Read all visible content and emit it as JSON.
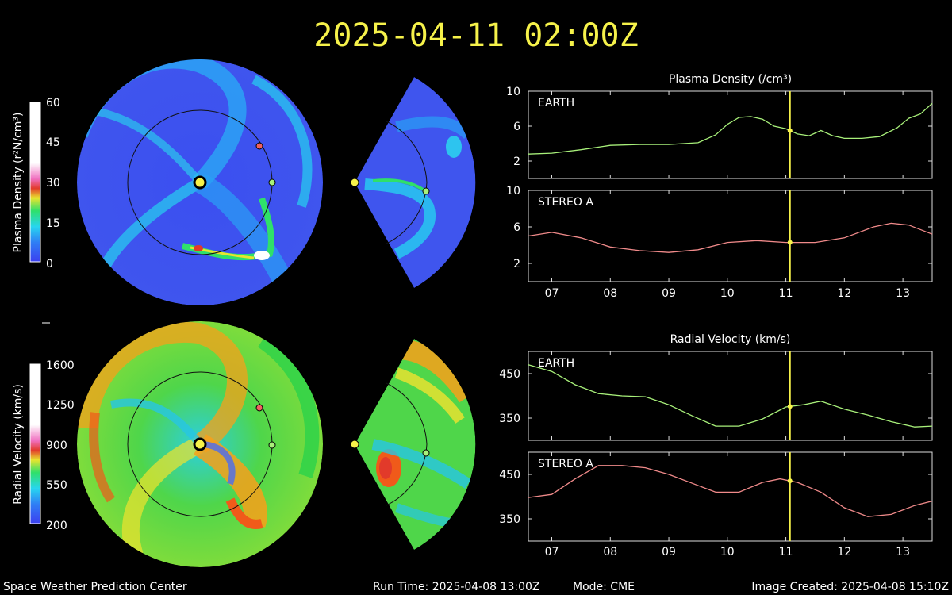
{
  "title": "2025-04-11  02:00Z",
  "footer": {
    "left": "Space Weather Prediction Center",
    "run_time": "Run Time: 2025-04-08 13:00Z",
    "mode": "Mode: CME",
    "image_created": "Image Created: 2025-04-08 15:10Z"
  },
  "colorbars": {
    "density": {
      "label": "Plasma Density (r²N/cm³)",
      "ticks": [
        "60",
        "45",
        "30",
        "15",
        "0"
      ]
    },
    "velocity": {
      "label": "Radial Velocity (km/s)",
      "ticks": [
        "1600",
        "1250",
        "900",
        "550",
        "200"
      ]
    }
  },
  "maps": {
    "density_colors": [
      "#3b4ff0",
      "#2d8ff5",
      "#27d6f0",
      "#2fe06a",
      "#f0e22e",
      "#e23a2a",
      "#ffffff"
    ],
    "velocity_colors": [
      "#2bd24a",
      "#5fe04f",
      "#d8e23a",
      "#f7a01a",
      "#f05a1a",
      "#27c6e4",
      "#4b6cf2"
    ]
  },
  "chart_data": [
    {
      "type": "line",
      "title": "Plasma Density (/cm³)",
      "xlim": [
        6.6,
        13.5
      ],
      "x_ticks": [
        "07",
        "08",
        "09",
        "10",
        "11",
        "12",
        "13"
      ],
      "current_time_x": 11.07,
      "panels": [
        {
          "name": "EARTH",
          "color": "#a8f07a",
          "ylim": [
            0,
            10
          ],
          "y_ticks": [
            "10",
            "6",
            "2"
          ],
          "y_tick_values": [
            10,
            6,
            2
          ],
          "x": [
            6.6,
            7.0,
            7.5,
            8.0,
            8.5,
            9.0,
            9.5,
            9.8,
            10.0,
            10.2,
            10.4,
            10.6,
            10.8,
            11.0,
            11.2,
            11.4,
            11.6,
            11.8,
            12.0,
            12.3,
            12.6,
            12.9,
            13.1,
            13.3,
            13.5
          ],
          "y": [
            2.8,
            2.9,
            3.3,
            3.8,
            3.9,
            3.9,
            4.1,
            5.0,
            6.2,
            7.0,
            7.1,
            6.8,
            6.0,
            5.7,
            5.1,
            4.9,
            5.5,
            4.9,
            4.6,
            4.6,
            4.8,
            5.8,
            6.9,
            7.4,
            8.6
          ]
        },
        {
          "name": "STEREO A",
          "color": "#f08a8a",
          "ylim": [
            0,
            10
          ],
          "y_ticks": [
            "10",
            "6",
            "2"
          ],
          "y_tick_values": [
            10,
            6,
            2
          ],
          "x": [
            6.6,
            7.0,
            7.5,
            8.0,
            8.5,
            9.0,
            9.5,
            10.0,
            10.5,
            11.0,
            11.5,
            12.0,
            12.5,
            12.8,
            13.1,
            13.5
          ],
          "y": [
            5.0,
            5.4,
            4.8,
            3.8,
            3.4,
            3.2,
            3.5,
            4.3,
            4.5,
            4.3,
            4.3,
            4.8,
            6.0,
            6.4,
            6.2,
            5.2
          ]
        }
      ]
    },
    {
      "type": "line",
      "title": "Radial Velocity (km/s)",
      "xlim": [
        6.6,
        13.5
      ],
      "x_ticks": [
        "07",
        "08",
        "09",
        "10",
        "11",
        "12",
        "13"
      ],
      "current_time_x": 11.07,
      "panels": [
        {
          "name": "EARTH",
          "color": "#a8f07a",
          "ylim": [
            300,
            500
          ],
          "y_ticks": [
            "450",
            "350"
          ],
          "y_tick_values": [
            450,
            350
          ],
          "x": [
            6.6,
            7.0,
            7.4,
            7.8,
            8.2,
            8.6,
            9.0,
            9.4,
            9.8,
            10.2,
            10.6,
            11.0,
            11.3,
            11.6,
            12.0,
            12.4,
            12.8,
            13.2,
            13.5
          ],
          "y": [
            470,
            455,
            425,
            405,
            400,
            398,
            380,
            355,
            332,
            332,
            348,
            375,
            380,
            388,
            370,
            357,
            342,
            330,
            332
          ]
        },
        {
          "name": "STEREO A",
          "color": "#f08a8a",
          "ylim": [
            300,
            500
          ],
          "y_ticks": [
            "450",
            "350"
          ],
          "y_tick_values": [
            450,
            350
          ],
          "x": [
            6.6,
            7.0,
            7.4,
            7.8,
            8.2,
            8.6,
            9.0,
            9.4,
            9.8,
            10.2,
            10.6,
            10.9,
            11.2,
            11.6,
            12.0,
            12.4,
            12.8,
            13.2,
            13.5
          ],
          "y": [
            398,
            405,
            440,
            470,
            470,
            465,
            450,
            430,
            410,
            410,
            432,
            440,
            432,
            410,
            375,
            355,
            360,
            380,
            390
          ]
        }
      ]
    }
  ]
}
